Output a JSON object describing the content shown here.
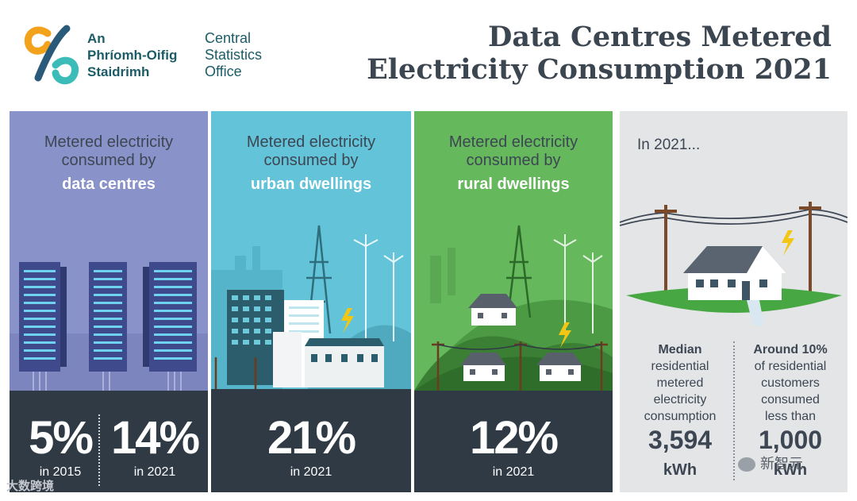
{
  "header": {
    "logo_irish": [
      "An",
      "Phríomh-Oifig",
      "Staidrimh"
    ],
    "logo_english": [
      "Central",
      "Statistics",
      "Office"
    ],
    "title_line1": "Data Centres Metered",
    "title_line2": "Electricity Consumption 2021"
  },
  "panels": {
    "data_centres": {
      "line1": "Metered electricity",
      "line2": "consumed by",
      "subject": "data centres",
      "value_2015": "5%",
      "label_2015": "in 2015",
      "value_2021": "14%",
      "label_2021": "in 2021"
    },
    "urban": {
      "line1": "Metered electricity",
      "line2": "consumed by",
      "subject": "urban dwellings",
      "value": "21%",
      "label": "in 2021"
    },
    "rural": {
      "line1": "Metered electricity",
      "line2": "consumed by",
      "subject": "rural dwellings",
      "value": "12%",
      "label": "in 2021"
    },
    "summary": {
      "intro": "In 2021...",
      "median_head": "Median",
      "median_lines": [
        "residential",
        "metered",
        "electricity",
        "consumption"
      ],
      "median_value": "3,594",
      "median_unit": "kWh",
      "around_head": "Around 10%",
      "around_lines": [
        "of residential",
        "customers",
        "consumed",
        "less than"
      ],
      "around_value": "1,000",
      "around_unit": "kWh"
    }
  },
  "watermarks": {
    "left": "大数跨境",
    "right": "新智元"
  },
  "colors": {
    "data_centres": "#8a93c9",
    "urban": "#62c3d9",
    "rural": "#65b85c",
    "summary": "#e3e5e7",
    "dark": "#2f3a45",
    "title": "#3c4650",
    "brand": "#1b5c66"
  }
}
